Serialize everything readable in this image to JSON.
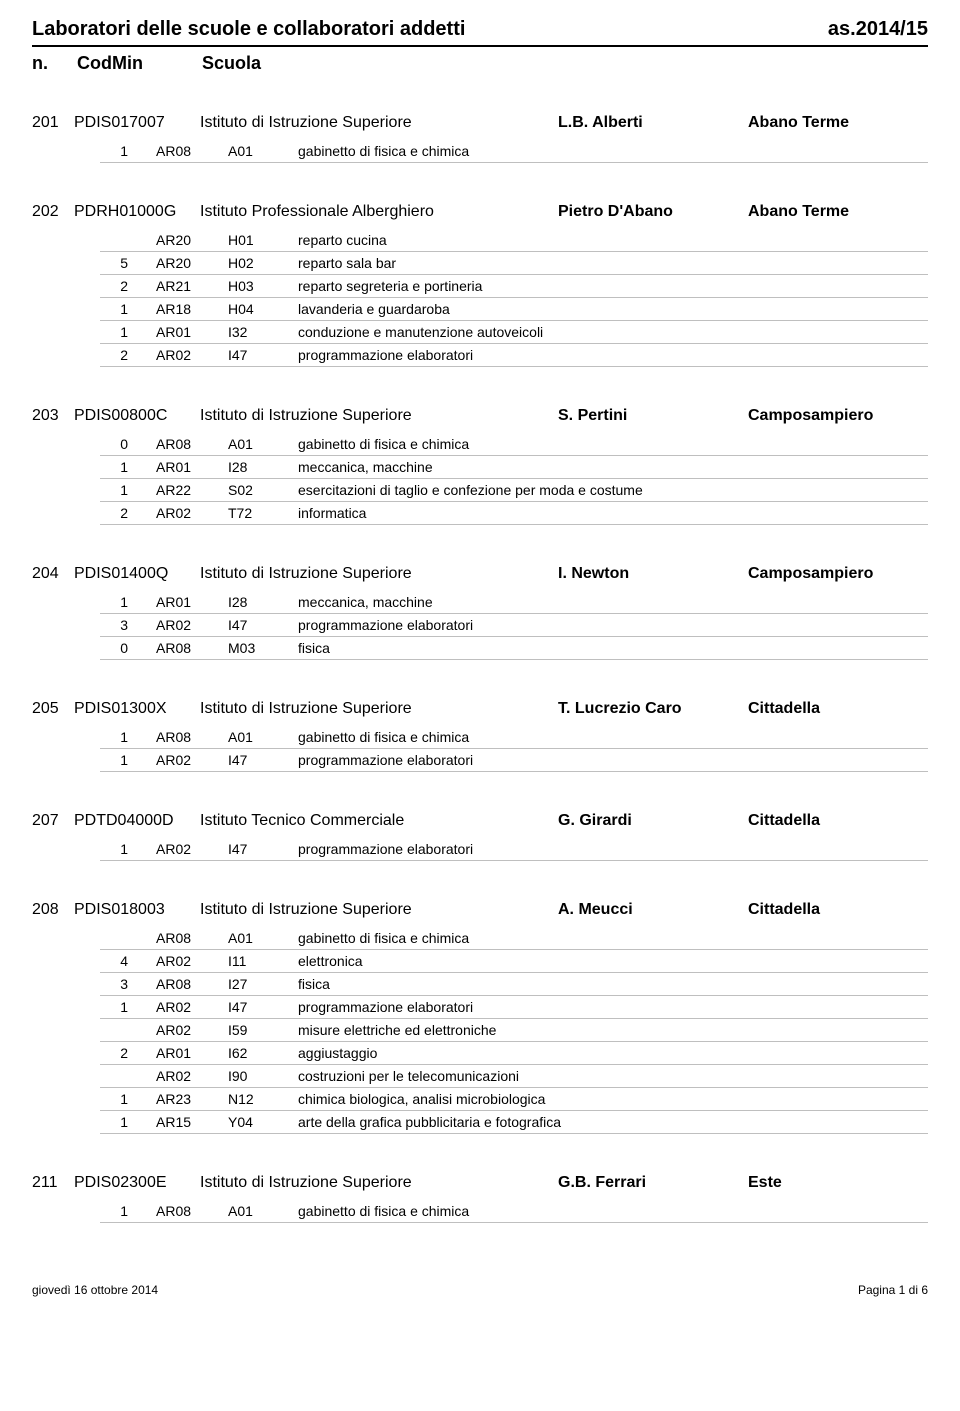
{
  "header": {
    "title": "Laboratori delle scuole e collaboratori addetti",
    "year": "as.2014/15",
    "n": "n.",
    "codmin": "CodMin",
    "scuola": "Scuola"
  },
  "sections": [
    {
      "n": "201",
      "cod": "PDIS017007",
      "type": "Istituto di Istruzione Superiore",
      "name": "L.B. Alberti",
      "city": "Abano Terme",
      "rows": [
        {
          "qty": "1",
          "a": "AR08",
          "b": "A01",
          "desc": "gabinetto di fisica e chimica"
        }
      ]
    },
    {
      "n": "202",
      "cod": "PDRH01000G",
      "type": "Istituto Professionale Alberghiero",
      "name": "Pietro D'Abano",
      "city": "Abano Terme",
      "rows": [
        {
          "qty": "",
          "a": "AR20",
          "b": "H01",
          "desc": "reparto cucina"
        },
        {
          "qty": "5",
          "a": "AR20",
          "b": "H02",
          "desc": "reparto sala bar"
        },
        {
          "qty": "2",
          "a": "AR21",
          "b": "H03",
          "desc": "reparto segreteria e portineria"
        },
        {
          "qty": "1",
          "a": "AR18",
          "b": "H04",
          "desc": "lavanderia e guardaroba"
        },
        {
          "qty": "1",
          "a": "AR01",
          "b": "I32",
          "desc": "conduzione e manutenzione autoveicoli"
        },
        {
          "qty": "2",
          "a": "AR02",
          "b": "I47",
          "desc": "programmazione elaboratori"
        }
      ]
    },
    {
      "n": "203",
      "cod": "PDIS00800C",
      "type": "Istituto di Istruzione Superiore",
      "name": "S. Pertini",
      "city": "Camposampiero",
      "rows": [
        {
          "qty": "0",
          "a": "AR08",
          "b": "A01",
          "desc": "gabinetto di fisica e chimica"
        },
        {
          "qty": "1",
          "a": "AR01",
          "b": "I28",
          "desc": "meccanica, macchine"
        },
        {
          "qty": "1",
          "a": "AR22",
          "b": "S02",
          "desc": "esercitazioni di taglio e confezione per moda e costume"
        },
        {
          "qty": "2",
          "a": "AR02",
          "b": "T72",
          "desc": "informatica"
        }
      ]
    },
    {
      "n": "204",
      "cod": "PDIS01400Q",
      "type": "Istituto di Istruzione Superiore",
      "name": "I. Newton",
      "city": "Camposampiero",
      "rows": [
        {
          "qty": "1",
          "a": "AR01",
          "b": "I28",
          "desc": "meccanica, macchine"
        },
        {
          "qty": "3",
          "a": "AR02",
          "b": "I47",
          "desc": "programmazione elaboratori"
        },
        {
          "qty": "0",
          "a": "AR08",
          "b": "M03",
          "desc": "fisica"
        }
      ]
    },
    {
      "n": "205",
      "cod": "PDIS01300X",
      "type": "Istituto di Istruzione Superiore",
      "name": "T. Lucrezio Caro",
      "city": "Cittadella",
      "rows": [
        {
          "qty": "1",
          "a": "AR08",
          "b": "A01",
          "desc": "gabinetto di fisica e chimica"
        },
        {
          "qty": "1",
          "a": "AR02",
          "b": "I47",
          "desc": "programmazione elaboratori"
        }
      ]
    },
    {
      "n": "207",
      "cod": "PDTD04000D",
      "type": "Istituto Tecnico Commerciale",
      "name": "G. Girardi",
      "city": "Cittadella",
      "rows": [
        {
          "qty": "1",
          "a": "AR02",
          "b": "I47",
          "desc": "programmazione elaboratori"
        }
      ]
    },
    {
      "n": "208",
      "cod": "PDIS018003",
      "type": "Istituto di Istruzione Superiore",
      "name": "A. Meucci",
      "city": "Cittadella",
      "rows": [
        {
          "qty": "",
          "a": "AR08",
          "b": "A01",
          "desc": "gabinetto di fisica e chimica"
        },
        {
          "qty": "4",
          "a": "AR02",
          "b": "I11",
          "desc": "elettronica"
        },
        {
          "qty": "3",
          "a": "AR08",
          "b": "I27",
          "desc": "fisica"
        },
        {
          "qty": "1",
          "a": "AR02",
          "b": "I47",
          "desc": "programmazione elaboratori"
        },
        {
          "qty": "",
          "a": "AR02",
          "b": "I59",
          "desc": "misure elettriche ed elettroniche"
        },
        {
          "qty": "2",
          "a": "AR01",
          "b": "I62",
          "desc": "aggiustaggio"
        },
        {
          "qty": "",
          "a": "AR02",
          "b": "I90",
          "desc": "costruzioni per le telecomunicazioni"
        },
        {
          "qty": "1",
          "a": "AR23",
          "b": "N12",
          "desc": "chimica biologica, analisi microbiologica"
        },
        {
          "qty": "1",
          "a": "AR15",
          "b": "Y04",
          "desc": "arte della grafica pubblicitaria e fotografica"
        }
      ]
    },
    {
      "n": "211",
      "cod": "PDIS02300E",
      "type": "Istituto di Istruzione Superiore",
      "name": "G.B. Ferrari",
      "city": "Este",
      "rows": [
        {
          "qty": "1",
          "a": "AR08",
          "b": "A01",
          "desc": "gabinetto di fisica e chimica"
        }
      ]
    }
  ],
  "footer": {
    "left": "giovedì 16 ottobre 2014",
    "right": "Pagina 1 di 6"
  }
}
